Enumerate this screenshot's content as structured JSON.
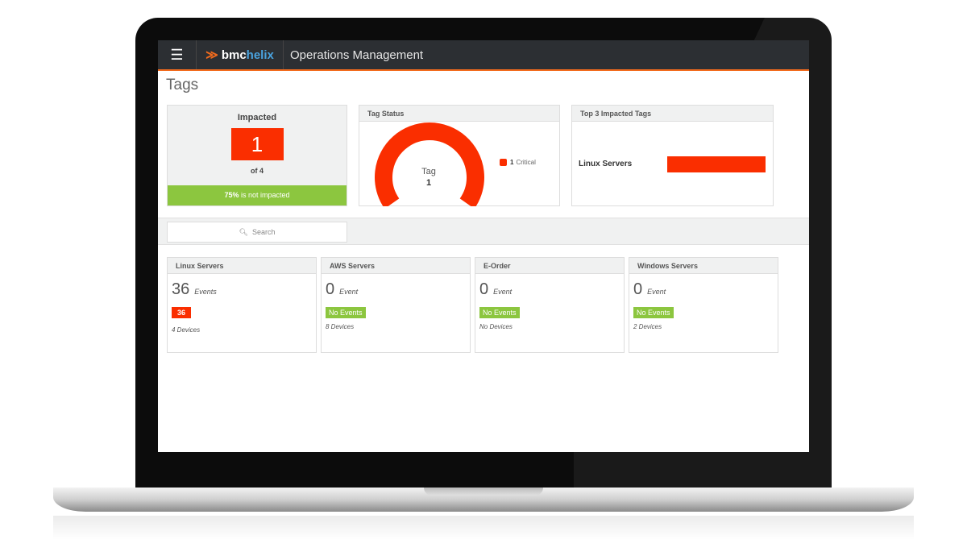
{
  "header": {
    "app_title": "Operations Management",
    "logo_text_1": "bmc",
    "logo_text_2": "helix"
  },
  "page_title": "Tags",
  "impacted": {
    "title": "Impacted",
    "value": "1",
    "of": "of 4",
    "not_impacted_pct": "75%",
    "not_impacted_text": "is not impacted"
  },
  "tag_status": {
    "title": "Tag Status",
    "center_label": "Tag",
    "center_value": "1",
    "legend_count": "1",
    "legend_label": "Critical",
    "critical_fraction": 1.0
  },
  "top3": {
    "title": "Top 3 Impacted Tags",
    "items": [
      {
        "label": "Linux Servers",
        "fraction": 1.0
      }
    ]
  },
  "search": {
    "placeholder": "Search"
  },
  "tags": [
    {
      "name": "Linux Servers",
      "count": "36",
      "unit": "Events",
      "badge": "36",
      "badge_type": "critical",
      "devices": "4 Devices"
    },
    {
      "name": "AWS Servers",
      "count": "0",
      "unit": "Event",
      "badge": "No Events",
      "badge_type": "ok",
      "devices": "8 Devices"
    },
    {
      "name": "E-Order",
      "count": "0",
      "unit": "Event",
      "badge": "No Events",
      "badge_type": "ok",
      "devices": "No Devices"
    },
    {
      "name": "Windows Servers",
      "count": "0",
      "unit": "Event",
      "badge": "No Events",
      "badge_type": "ok",
      "devices": "2 Devices"
    }
  ],
  "colors": {
    "critical": "#fa2e00",
    "ok": "#8cc63f",
    "accent": "#f26b1d",
    "topbar": "#2c2f33"
  }
}
